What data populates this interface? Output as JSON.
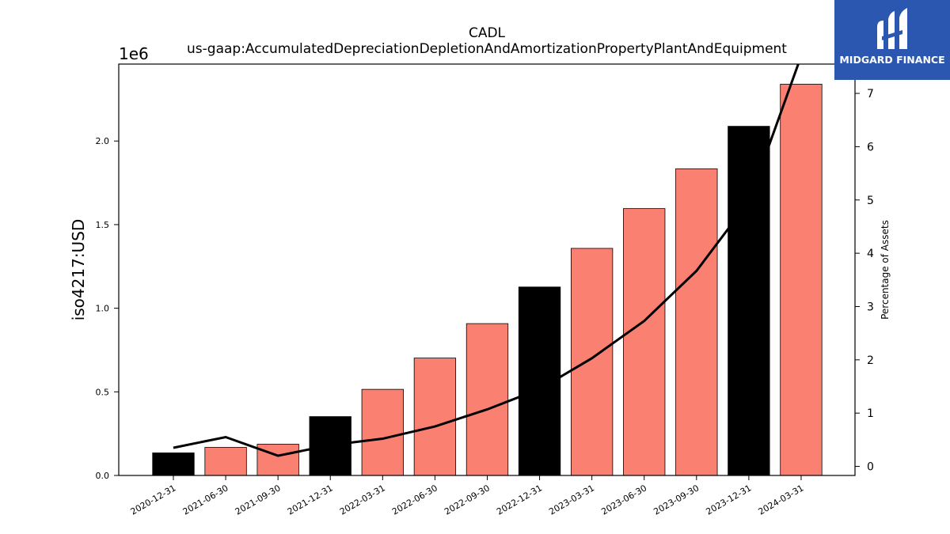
{
  "chart_data": {
    "type": "bar",
    "title": "CADL",
    "subtitle": "us-gaap:AccumulatedDepreciationDepletionAndAmortizationPropertyPlantAndEquipment",
    "ylabel": "iso4217:USD",
    "y_offset_label": "1e6",
    "y2label": "Percentage of Assets",
    "categories": [
      "2020-12-31",
      "2021-06-30",
      "2021-09-30",
      "2021-12-31",
      "2022-03-31",
      "2022-06-30",
      "2022-09-30",
      "2022-12-31",
      "2023-03-31",
      "2023-06-30",
      "2023-09-30",
      "2023-12-31",
      "2024-03-31"
    ],
    "values": [
      135000,
      168000,
      187000,
      352000,
      515000,
      702000,
      908000,
      1127000,
      1358000,
      1596000,
      1834000,
      2088000,
      2340000
    ],
    "bar_colors": [
      "#000000",
      "#fa8072",
      "#fa8072",
      "#000000",
      "#fa8072",
      "#fa8072",
      "#fa8072",
      "#000000",
      "#fa8072",
      "#fa8072",
      "#fa8072",
      "#000000",
      "#fa8072"
    ],
    "line_series": {
      "name": "Percentage of Assets",
      "values": [
        0.35,
        0.55,
        0.2,
        0.4,
        0.52,
        0.75,
        1.07,
        1.45,
        2.03,
        2.73,
        3.67,
        4.97,
        7.7
      ],
      "color": "#000000"
    },
    "ylim": [
      0,
      2460000
    ],
    "yticks": [
      0,
      500000,
      1000000,
      1500000,
      2000000
    ],
    "ytick_labels": [
      "0.0",
      "0.5",
      "1.0",
      "1.5",
      "2.0"
    ],
    "y2lim": [
      -0.17,
      7.55
    ],
    "y2ticks": [
      0,
      1,
      2,
      3,
      4,
      5,
      6,
      7
    ],
    "y2tick_labels": [
      "0",
      "1",
      "2",
      "3",
      "4",
      "5",
      "6",
      "7"
    ]
  },
  "logo": {
    "text": "MIDGARD FINANCE",
    "color": "#2b57b0"
  }
}
